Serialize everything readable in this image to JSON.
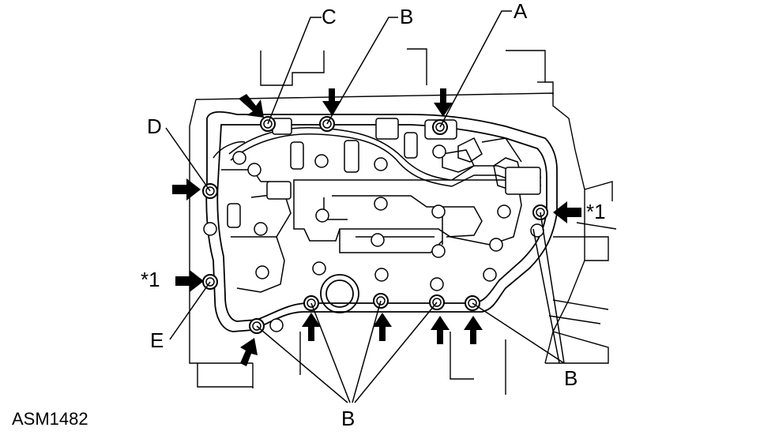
{
  "figure_code": "ASM1482",
  "callouts": {
    "a": "A",
    "b_top": "B",
    "c": "C",
    "d": "D",
    "e": "E",
    "b_right": "B",
    "b_bottom": "B",
    "star1_left": "*1",
    "star1_right": "*1"
  },
  "colors": {
    "line": "#000000",
    "background": "#ffffff"
  }
}
